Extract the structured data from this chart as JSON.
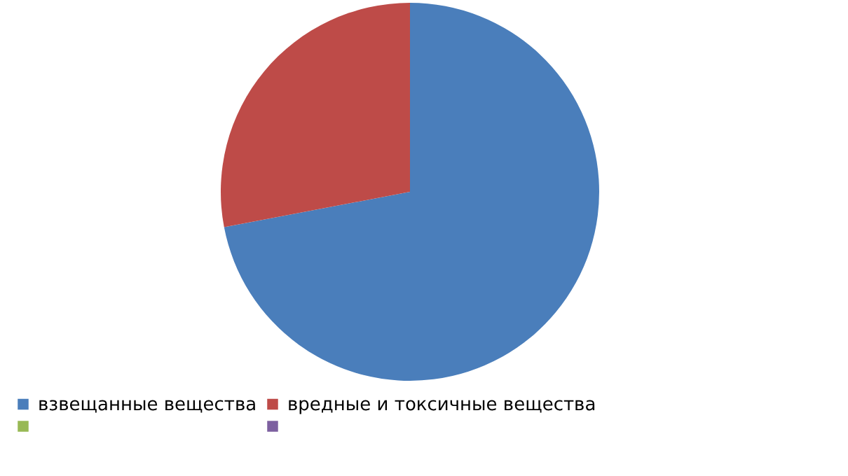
{
  "chart_data": {
    "type": "pie",
    "categories": [
      "взвещанные вещества",
      "вредные  и токсичные вещества",
      null,
      null
    ],
    "values": [
      72,
      28,
      0,
      0
    ],
    "colors": [
      "#4a7ebb",
      "#be4b48",
      "#98b954",
      "#7d60a0"
    ],
    "legend": "bottom"
  }
}
